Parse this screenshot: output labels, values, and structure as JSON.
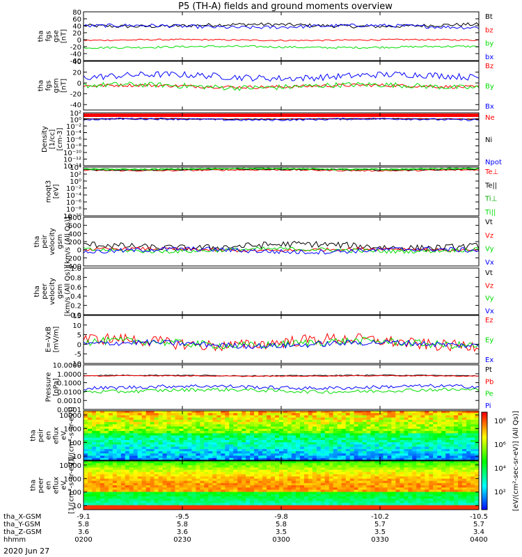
{
  "title": "P5 (TH-A) fields and ground moments overview",
  "date_label": "2020 Jun 27",
  "ephemeris": {
    "row_labels": [
      "tha_X-GSM",
      "tha_Y-GSM",
      "tha_Z-GSM",
      "hhmm"
    ],
    "columns": [
      {
        "t": 0,
        "X": "-9.1",
        "Y": "5.8",
        "Z": "3.6",
        "hhmm": "0200"
      },
      {
        "t": 30,
        "X": "-9.5",
        "Y": "5.8",
        "Z": "3.6",
        "hhmm": "0230"
      },
      {
        "t": 60,
        "X": "-9.8",
        "Y": "5.8",
        "Z": "3.5",
        "hhmm": "0300"
      },
      {
        "t": 90,
        "X": "-10.2",
        "Y": "5.7",
        "Z": "3.5",
        "hhmm": "0330"
      },
      {
        "t": 120,
        "X": "-10.5",
        "Y": "5.7",
        "Z": "3.4",
        "hhmm": "0400"
      }
    ]
  },
  "colorbar": {
    "label": "[eV/(cm²-sec-sr-eV)] (All Qs)]",
    "ticks": [
      "10⁸",
      "10⁶",
      "10⁴",
      "10²"
    ]
  },
  "chart_data": [
    {
      "type": "line",
      "ylabel": [
        "tha",
        "fgs",
        "gse",
        "[nT]"
      ],
      "ylim": [
        -60,
        80
      ],
      "yticks": [
        "80",
        "60",
        "40",
        "20",
        "0",
        "-20",
        "-40",
        "-60"
      ],
      "ytick_values": [
        80,
        60,
        40,
        20,
        0,
        -20,
        -40,
        -60
      ],
      "series": [
        {
          "name": "Bt",
          "color": "#000000",
          "base": 41,
          "amp": 5
        },
        {
          "name": "bz",
          "color": "#ff0000",
          "base": -1,
          "amp": 2
        },
        {
          "name": "by",
          "color": "#00dd00",
          "base": -21,
          "amp": 3
        },
        {
          "name": "bx",
          "color": "#0000ff",
          "base": 38,
          "amp": 5
        }
      ]
    },
    {
      "type": "line",
      "ylabel": [
        "tha",
        "fgs",
        "gsm",
        "[nT]"
      ],
      "ylim": [
        -50,
        40
      ],
      "yticks": [
        "40",
        "20",
        "0",
        "-20",
        "-40"
      ],
      "ytick_values": [
        40,
        20,
        0,
        -20,
        -40
      ],
      "series": [
        {
          "name": "Bz",
          "color": "#ff0000",
          "base": -6,
          "amp": 3
        },
        {
          "name": "By",
          "color": "#00dd00",
          "base": -6,
          "amp": 5
        },
        {
          "name": "Bx",
          "color": "#0000ff",
          "base": 12,
          "amp": 6
        }
      ]
    },
    {
      "type": "line",
      "log": true,
      "ylabel": [
        "Density",
        "[1/cc]",
        "[cm-3]"
      ],
      "ylim": [
        -14,
        2
      ],
      "yticks": [
        "10²",
        "10⁰",
        "10⁻²",
        "10⁻⁴",
        "10⁻⁶",
        "10⁻⁸",
        "10⁻¹⁰",
        "10⁻¹²",
        "10⁻¹⁴"
      ],
      "ytick_values": [
        2,
        0,
        -2,
        -4,
        -6,
        -8,
        -10,
        -12,
        -14
      ],
      "series": [
        {
          "name": "Ne",
          "color": "#ff0000",
          "base": 0.2,
          "amp": 0.1
        },
        {
          "name": "Ni",
          "color": "#000000",
          "base": 0.1,
          "amp": 0.1
        },
        {
          "name": "Npot",
          "color": "#0000ff",
          "base": 0,
          "amp": 0.3
        }
      ]
    },
    {
      "type": "line",
      "log": true,
      "ylabel": [
        "moqt3",
        "[eV]"
      ],
      "ylim": [
        -10,
        4
      ],
      "yticks": [
        "10⁴",
        "10²",
        "10⁰",
        "10⁻²",
        "10⁻⁴",
        "10⁻⁶",
        "10⁻⁸",
        "10⁻¹⁰"
      ],
      "ytick_values": [
        4,
        2,
        0,
        -2,
        -4,
        -6,
        -8,
        -10
      ],
      "series": [
        {
          "name": "Te⊥",
          "color": "#ff0000",
          "base": 3.1,
          "amp": 0.2
        },
        {
          "name": "Te||",
          "color": "#000000",
          "base": 3.3,
          "amp": 0.2
        },
        {
          "name": "Ti⊥",
          "color": "#00aa00",
          "base": 3.5,
          "amp": 0.2
        },
        {
          "name": "Ti||",
          "color": "#00dd00",
          "base": 3.4,
          "amp": 0.2
        }
      ]
    },
    {
      "type": "line",
      "ylabel": [
        "tha",
        "peir",
        "velocity",
        "gsm",
        "[km/s (All Qs)]"
      ],
      "ylim": [
        -400,
        800
      ],
      "yticks": [
        "800",
        "600",
        "400",
        "200",
        "0",
        "-200",
        "-400"
      ],
      "ytick_values": [
        800,
        600,
        400,
        200,
        0,
        -200,
        -400
      ],
      "series": [
        {
          "name": "Vt",
          "color": "#000000",
          "base": 90,
          "amp": 80
        },
        {
          "name": "Vz",
          "color": "#ff0000",
          "base": 0,
          "amp": 40
        },
        {
          "name": "Vy",
          "color": "#00dd00",
          "base": -10,
          "amp": 50
        },
        {
          "name": "Vx",
          "color": "#0000ff",
          "base": -20,
          "amp": 60
        }
      ]
    },
    {
      "type": "line",
      "empty": true,
      "ylabel": [
        "tha",
        "peer",
        "velocity",
        "gsm",
        "[km/s (All Qs)]"
      ],
      "ylim": [
        0,
        1
      ],
      "yticks": [
        "1.0",
        "0.8",
        "0.6",
        "0.4",
        "0.2",
        "0.0"
      ],
      "ytick_values": [
        1,
        0.8,
        0.6,
        0.4,
        0.2,
        0
      ],
      "series": [
        {
          "name": "Vt",
          "color": "#000000"
        },
        {
          "name": "Vz",
          "color": "#ff0000"
        },
        {
          "name": "Vy",
          "color": "#00dd00"
        },
        {
          "name": "Vx",
          "color": "#0000ff"
        }
      ]
    },
    {
      "type": "line",
      "ylabel": [
        "E=-VxB",
        "[mV/m]"
      ],
      "ylim": [
        -10,
        15
      ],
      "yticks": [
        "15",
        "10",
        "5",
        "0",
        "-5",
        "-10"
      ],
      "ytick_values": [
        15,
        10,
        5,
        0,
        -5,
        -10
      ],
      "series": [
        {
          "name": "Ez",
          "color": "#ff0000",
          "base": 1,
          "amp": 3
        },
        {
          "name": "Ey",
          "color": "#00dd00",
          "base": 0.5,
          "amp": 2
        },
        {
          "name": "Ex",
          "color": "#0000ff",
          "base": 0,
          "amp": 1.5
        }
      ]
    },
    {
      "type": "line",
      "log": true,
      "ylabel": [
        "Pressure",
        "[nPa]"
      ],
      "ylim": [
        -4,
        1
      ],
      "yticks": [
        "10.0000",
        "1.0000",
        "0.1000",
        "0.0100",
        "0.0010",
        "0.0001"
      ],
      "ytick_values": [
        1,
        0,
        -1,
        -2,
        -3,
        -4
      ],
      "series": [
        {
          "name": "Pt",
          "color": "#000000",
          "base": -0.2,
          "amp": 0.05
        },
        {
          "name": "Pb",
          "color": "#ff0000",
          "base": -0.25,
          "amp": 0.05
        },
        {
          "name": "Pe",
          "color": "#00dd00",
          "base": -1.9,
          "amp": 0.2
        },
        {
          "name": "Pi",
          "color": "#0000ff",
          "base": -1.5,
          "amp": 0.2
        }
      ]
    },
    {
      "type": "heatmap",
      "ylabel": [
        "tha",
        "peir",
        "en",
        "eflux",
        "eV",
        "[1/(cm²-s-sr-eV)]"
      ],
      "ylim": [
        5,
        20000
      ],
      "yticks": [
        "10000",
        "1000",
        "100",
        "10"
      ],
      "ytick_values": [
        4,
        3,
        2,
        1
      ]
    },
    {
      "type": "heatmap",
      "ylabel": [
        "tha",
        "peer",
        "en",
        "eflux",
        "eV",
        "[1/(cm²-s-sr-eV)]"
      ],
      "ylim": [
        5,
        20000
      ],
      "yticks": [
        "10000",
        "1000",
        "100",
        "10"
      ],
      "ytick_values": [
        4,
        3,
        2,
        1
      ]
    }
  ]
}
